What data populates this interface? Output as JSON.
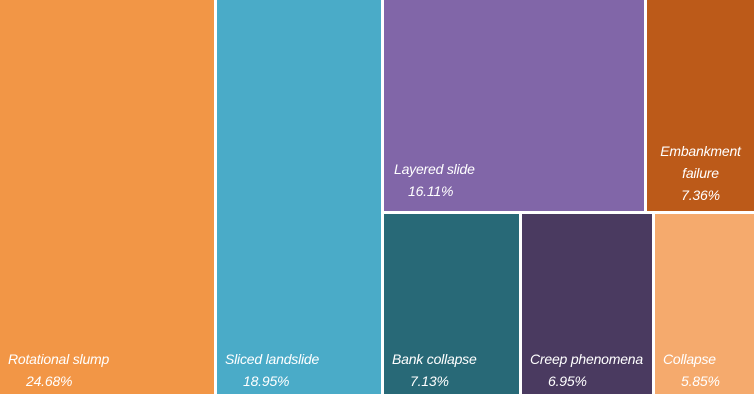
{
  "chart_data": {
    "type": "treemap",
    "title": "",
    "items": [
      {
        "name": "Rotational slump",
        "value": 24.68,
        "label": "24.68%",
        "color": "#f29646"
      },
      {
        "name": "Sliced landslide",
        "value": 18.95,
        "label": "18.95%",
        "color": "#4aabc8"
      },
      {
        "name": "Layered slide",
        "value": 16.11,
        "label": "16.11%",
        "color": "#8166a8"
      },
      {
        "name": "Embankment failure",
        "value": 7.36,
        "label": "7.36%",
        "color": "#bc5a19"
      },
      {
        "name": "Bank collapse",
        "value": 7.13,
        "label": "7.13%",
        "color": "#286977"
      },
      {
        "name": "Creep phenomena",
        "value": 6.95,
        "label": "6.95%",
        "color": "#4a3a60"
      },
      {
        "name": "Collapse",
        "value": 5.85,
        "label": "5.85%",
        "color": "#f5aa6d"
      }
    ]
  }
}
